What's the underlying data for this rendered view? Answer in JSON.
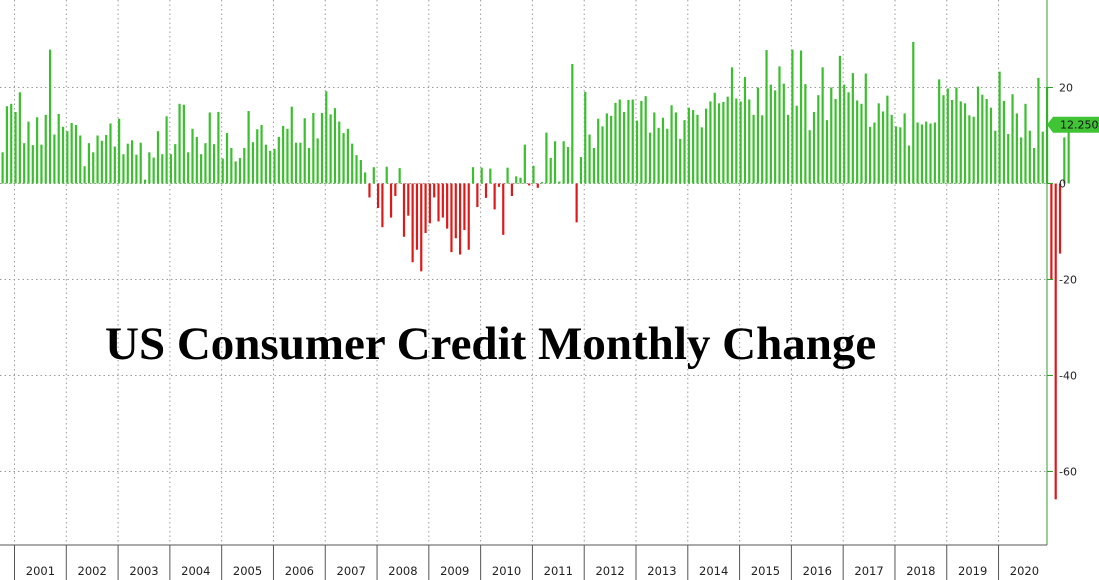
{
  "chart_data": {
    "type": "bar",
    "title": "US Consumer Credit Monthly Change",
    "xlabel": "",
    "ylabel": "",
    "ylim": [
      -72,
      38
    ],
    "yticks": [
      20,
      0,
      -20,
      -40,
      -60
    ],
    "year_labels": [
      "2001",
      "2002",
      "2003",
      "2004",
      "2005",
      "2006",
      "2007",
      "2008",
      "2009",
      "2010",
      "2011",
      "2012",
      "2013",
      "2014",
      "2015",
      "2016",
      "2017",
      "2018",
      "2019",
      "2020"
    ],
    "x_start": "2001-01",
    "x_end": "2020-07",
    "last_value_label": "12.250",
    "grid": true,
    "positive_color": "#3bbf2e",
    "negative_color": "#dd1a1a",
    "axis_color": "#2ea02a",
    "series": [
      {
        "values": [
          6.5,
          16.1,
          16.6,
          14.9,
          19.0,
          8.4,
          12.9,
          8.0,
          13.8,
          8.1,
          14.3,
          27.9,
          10.2,
          14.5,
          11.8,
          10.9,
          12.6,
          12.2,
          10.0,
          3.6,
          8.4,
          6.5,
          10.0,
          8.9,
          10.1,
          12.5,
          7.7,
          13.5,
          6.1,
          8.3,
          9.0,
          6.0,
          8.5,
          0.8,
          6.5,
          5.4,
          10.9,
          6.1,
          14.0,
          6.1,
          8.2,
          16.6,
          16.4,
          6.5,
          11.4,
          9.7,
          6.1,
          8.4,
          14.8,
          8.2,
          14.9,
          5.2,
          10.5,
          7.4,
          4.6,
          5.3,
          7.4,
          15.1,
          8.6,
          11.3,
          12.2,
          8.1,
          6.8,
          7.2,
          9.7,
          12.0,
          11.4,
          16.0,
          8.5,
          8.5,
          13.6,
          7.4,
          14.7,
          9.4,
          14.7,
          19.2,
          14.4,
          15.7,
          12.9,
          10.5,
          11.4,
          8.3,
          5.9,
          4.9,
          2.3,
          -2.9,
          3.4,
          -5.1,
          -9.1,
          3.5,
          -7.1,
          -2.6,
          3.2,
          -11.1,
          -6.7,
          -16.4,
          -13.8,
          -18.3,
          -10.3,
          -8.3,
          -2.9,
          -7.9,
          -7.1,
          -9.4,
          -14.3,
          -11.4,
          -14.8,
          -9.7,
          -13.8,
          3.4,
          -4.9,
          3.3,
          -3.0,
          3.1,
          -5.4,
          -0.7,
          -10.7,
          3.3,
          -2.6,
          1.5,
          1.2,
          8.1,
          -0.4,
          3.7,
          -0.9,
          0.3,
          10.6,
          5.3,
          8.8,
          0.4,
          8.8,
          7.6,
          24.9,
          -8.1,
          5.5,
          19.1,
          10.2,
          7.4,
          13.5,
          11.9,
          14.6,
          14.1,
          16.8,
          17.5,
          14.9,
          17.4,
          17.5,
          13.1,
          17.2,
          18.2,
          10.6,
          14.8,
          11.6,
          13.7,
          11.4,
          16.3,
          14.8,
          9.3,
          13.2,
          15.8,
          15.3,
          14.3,
          11.7,
          15.6,
          17.1,
          18.9,
          16.7,
          17.0,
          18.1,
          24.2,
          17.7,
          17.1,
          22.2,
          17.5,
          14.3,
          20.0,
          14.2,
          27.8,
          20.6,
          19.4,
          24.4,
          20.8,
          14.3,
          27.9,
          16.2,
          27.7,
          20.7,
          11.1,
          14.9,
          18.4,
          24.2,
          13.2,
          20.0,
          17.6,
          26.6,
          20.6,
          19.0,
          23.0,
          17.3,
          16.6,
          22.9,
          11.8,
          12.7,
          16.7,
          15.0,
          18.3,
          14.3,
          11.9,
          11.7,
          14.6,
          7.9,
          29.5,
          12.7,
          12.3,
          12.9,
          12.5,
          12.7,
          21.7,
          18.4,
          19.8,
          17.4,
          20.0,
          17.1,
          16.7,
          14.2,
          13.9,
          20.2,
          18.5,
          17.6,
          15.8,
          11.0,
          23.3,
          17.2,
          10.3,
          18.6,
          14.6,
          9.6,
          16.6,
          11.0,
          7.4,
          22.0,
          10.8,
          20.1,
          -20.0,
          -65.8,
          -14.6,
          9.6,
          12.25
        ]
      }
    ]
  }
}
